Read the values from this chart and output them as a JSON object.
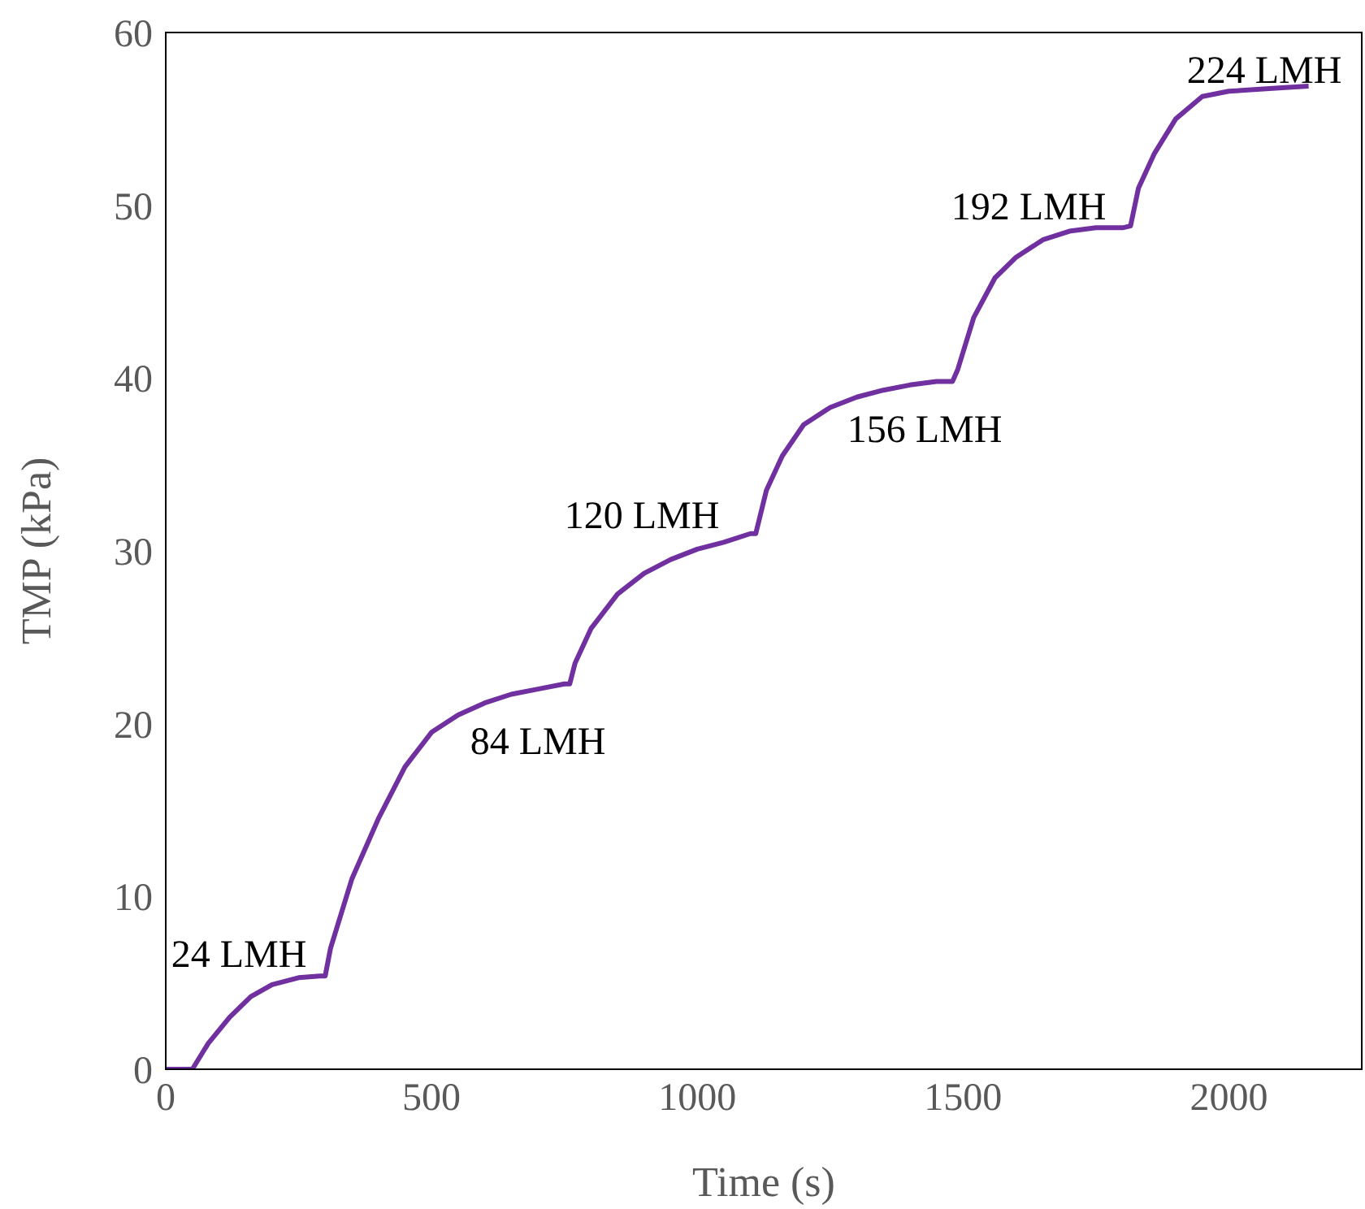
{
  "chart_data": {
    "type": "line",
    "xlabel": "Time (s)",
    "ylabel": "TMP (kPa)",
    "xlim": [
      0,
      2250
    ],
    "xticks": [
      0,
      500,
      1000,
      1500,
      2000
    ],
    "ylim": [
      0,
      60
    ],
    "yticks": [
      0,
      10,
      20,
      30,
      40,
      50,
      60
    ],
    "marker": "none",
    "x": [
      0,
      50,
      80,
      120,
      160,
      200,
      250,
      290,
      300,
      310,
      350,
      400,
      450,
      500,
      550,
      600,
      650,
      700,
      750,
      760,
      770,
      800,
      850,
      900,
      950,
      1000,
      1050,
      1100,
      1110,
      1130,
      1160,
      1200,
      1250,
      1300,
      1350,
      1400,
      1450,
      1480,
      1490,
      1520,
      1560,
      1600,
      1650,
      1700,
      1750,
      1800,
      1815,
      1830,
      1860,
      1900,
      1950,
      2000,
      2100,
      2150
    ],
    "series": [
      {
        "color": "#7030a0",
        "values": [
          0,
          0,
          1.5,
          3,
          4.2,
          4.9,
          5.3,
          5.4,
          5.4,
          7,
          11,
          14.5,
          17.5,
          19.5,
          20.5,
          21.2,
          21.7,
          22,
          22.3,
          22.3,
          23.5,
          25.5,
          27.5,
          28.7,
          29.5,
          30.1,
          30.5,
          31,
          31,
          33.5,
          35.5,
          37.3,
          38.3,
          38.9,
          39.3,
          39.6,
          39.8,
          39.8,
          40.5,
          43.5,
          45.8,
          47,
          48,
          48.5,
          48.7,
          48.7,
          48.8,
          51,
          53,
          55,
          56.3,
          56.6,
          56.8,
          56.9
        ]
      }
    ],
    "annotations": [
      "24 LMH",
      "84 LMH",
      "120 LMH",
      "156 LMH",
      "192 LMH",
      "224 LMH"
    ]
  }
}
